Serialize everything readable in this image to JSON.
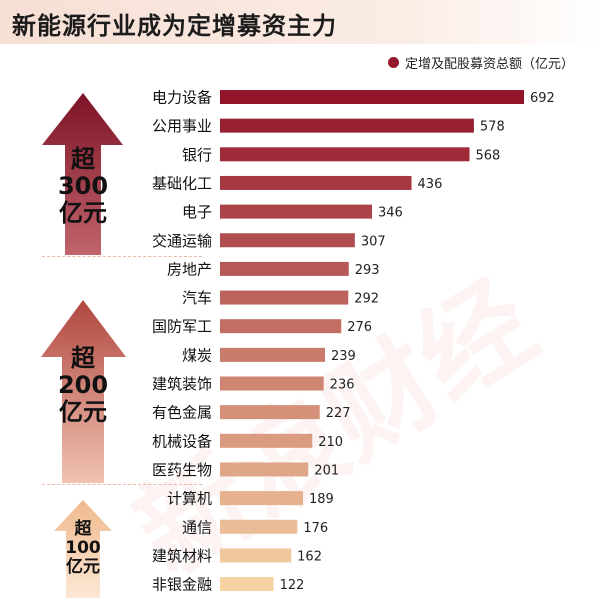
{
  "title": "新能源行业成为定增募资主力",
  "legend": "定增及配股募资总额（亿元）",
  "groups": [
    {
      "label_line1": "超",
      "label_line2": "300",
      "label_line3": "亿元",
      "color": "#8d1b2e"
    },
    {
      "label_line1": "超",
      "label_line2": "200",
      "label_line3": "亿元",
      "color": "#c9694f"
    },
    {
      "label_line1": "超",
      "label_line2": "100",
      "label_line3": "亿元",
      "color": "#f2c8a3"
    }
  ],
  "colors": {
    "bar_dark": "#93152a",
    "bar_light": "#f7d3a4",
    "legend": "#93152a"
  },
  "chart_data": {
    "type": "bar",
    "orientation": "horizontal",
    "categories": [
      "电力设备",
      "公用事业",
      "银行",
      "基础化工",
      "电子",
      "交通运输",
      "房地产",
      "汽车",
      "国防军工",
      "煤炭",
      "建筑装饰",
      "有色金属",
      "机械设备",
      "医药生物",
      "计算机",
      "通信",
      "建筑材料",
      "非银金融"
    ],
    "series": [
      {
        "name": "定增及配股募资总额（亿元）",
        "values": [
          692,
          578,
          568,
          436,
          346,
          307,
          293,
          292,
          276,
          239,
          236,
          227,
          210,
          201,
          189,
          176,
          162,
          122
        ]
      }
    ],
    "xlim": [
      0,
      692
    ],
    "unit": "亿元"
  }
}
